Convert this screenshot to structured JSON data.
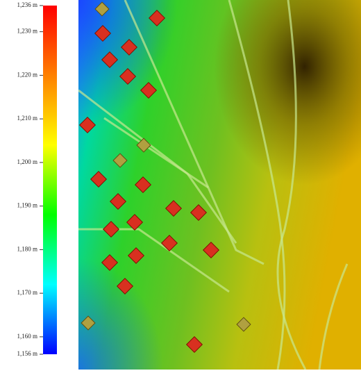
{
  "legend": {
    "lim": [
      1156,
      1236
    ],
    "ticks": [
      {
        "value": 1236,
        "label": "1,236 m"
      },
      {
        "value": 1230,
        "label": "1,230 m"
      },
      {
        "value": 1220,
        "label": "1,220 m"
      },
      {
        "value": 1210,
        "label": "1,210 m"
      },
      {
        "value": 1200,
        "label": "1,200 m"
      },
      {
        "value": 1190,
        "label": "1,190 m"
      },
      {
        "value": 1180,
        "label": "1,180 m"
      },
      {
        "value": 1170,
        "label": "1,170 m"
      },
      {
        "value": 1160,
        "label": "1,160 m"
      },
      {
        "value": 1156,
        "label": "1,156 m"
      }
    ],
    "colors": [
      "#0000ff",
      "#00ffff",
      "#00ff00",
      "#ffff00",
      "#ff8000",
      "#ff0000"
    ]
  }
}
